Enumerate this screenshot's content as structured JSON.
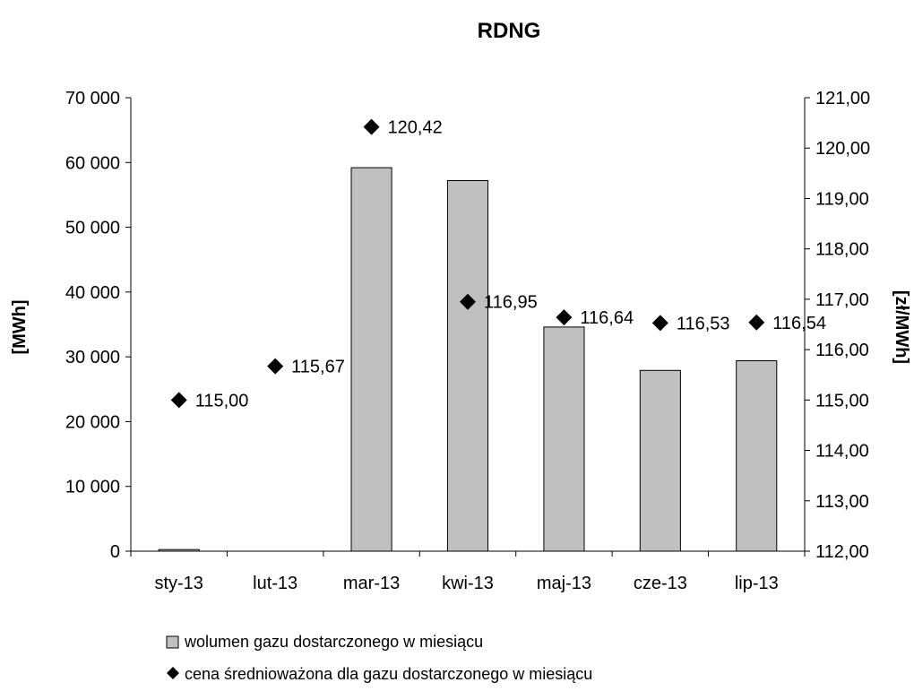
{
  "chart_data": {
    "type": "bar",
    "title": "RDNG",
    "categories": [
      "sty-13",
      "lut-13",
      "mar-13",
      "kwi-13",
      "maj-13",
      "cze-13",
      "lip-13"
    ],
    "ylabel": "[MWh]",
    "y2label": "[zł/MWh]",
    "ylim": [
      0,
      70000
    ],
    "y2lim": [
      112,
      121
    ],
    "y_ticks": [
      "0",
      "10 000",
      "20 000",
      "30 000",
      "40 000",
      "50 000",
      "60 000",
      "70 000"
    ],
    "y2_ticks": [
      "112,00",
      "113,00",
      "114,00",
      "115,00",
      "116,00",
      "117,00",
      "118,00",
      "119,00",
      "120,00",
      "121,00"
    ],
    "grid": false,
    "legend_position": "bottom",
    "series": [
      {
        "name": "wolumen gazu dostarczonego w miesiącu",
        "type": "bar",
        "axis": "left",
        "color": "#c0c0c0",
        "values": [
          250,
          0,
          59200,
          57200,
          34600,
          27900,
          29400
        ]
      },
      {
        "name": "cena średnioważona dla gazu dostarczonego w miesiącu",
        "type": "scatter",
        "axis": "right",
        "marker": "diamond",
        "color": "#000000",
        "values": [
          115.0,
          115.67,
          120.42,
          116.95,
          116.64,
          116.53,
          116.54
        ],
        "labels": [
          "115,00",
          "115,67",
          "120,42",
          "116,95",
          "116,64",
          "116,53",
          "116,54"
        ]
      }
    ]
  }
}
